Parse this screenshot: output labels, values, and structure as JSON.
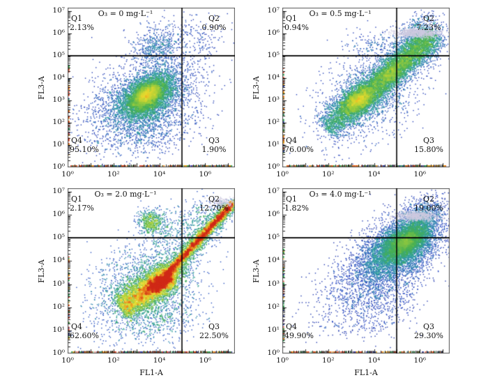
{
  "figure": {
    "x_axis_label": "FL1-A",
    "y_axis_label": "FL3-A",
    "description": "Flow cytometry density scatter plots (FL1-A vs FL3-A) with quadrant gates at four ozone doses"
  },
  "axes": {
    "x_tick_labels": [
      "10⁰",
      "10²",
      "10⁴",
      "10⁶"
    ],
    "x_tick_decades": [
      0,
      2,
      4,
      6
    ],
    "y_tick_labels": [
      "10⁰",
      "10¹",
      "10²",
      "10³",
      "10⁴",
      "10⁵",
      "10⁶",
      "10⁷"
    ],
    "y_tick_decades": [
      0,
      1,
      2,
      3,
      4,
      5,
      6,
      7
    ],
    "x_log_range": [
      0,
      7.3
    ],
    "y_log_range": [
      0,
      7.15
    ]
  },
  "style": {
    "frame_color": "#555555",
    "tick_color": "#222222",
    "gate_color": "#000000",
    "smudge_color": "#cdc9e0",
    "rug_palette": [
      "#2a3aa0",
      "#2f9e4e",
      "#e5950f",
      "#d23c1e"
    ],
    "jet_stops": [
      [
        0.0,
        28,
        37,
        140
      ],
      [
        0.18,
        38,
        70,
        195
      ],
      [
        0.38,
        45,
        155,
        165
      ],
      [
        0.55,
        70,
        175,
        85
      ],
      [
        0.7,
        160,
        205,
        60
      ],
      [
        0.82,
        232,
        218,
        48
      ],
      [
        0.91,
        235,
        135,
        30
      ],
      [
        1.0,
        208,
        42,
        24
      ]
    ]
  },
  "chart_data": [
    {
      "type": "scatter",
      "title": "O₃ = 0 mg·L⁻¹",
      "o3_label": "0 mg·L⁻¹",
      "gate_x_log": 5,
      "gate_y_log": 5,
      "quadrants": [
        {
          "name": "Q1",
          "percent": "2.13%"
        },
        {
          "name": "Q2",
          "percent": "0.90%"
        },
        {
          "name": "Q3",
          "percent": "1.90%"
        },
        {
          "name": "Q4",
          "percent": "95.10%"
        }
      ],
      "gain": 0.72,
      "seed": 101,
      "clusters": [
        {
          "n": 2200,
          "cx": 3.2,
          "cy": 2.9,
          "sx": 1.2,
          "sy": 0.95,
          "rho": 0.35
        },
        {
          "n": 4600,
          "cx": 3.5,
          "cy": 3.2,
          "sx": 0.62,
          "sy": 0.52,
          "rho": 0.5
        },
        {
          "n": 2400,
          "cx": 3.45,
          "cy": 3.25,
          "sx": 0.3,
          "sy": 0.26,
          "rho": 0.5
        },
        {
          "n": 520,
          "cx": 3.9,
          "cy": 5.3,
          "sx": 0.55,
          "sy": 0.45,
          "rho": 0.15
        },
        {
          "n": 120,
          "cx": 4.6,
          "cy": 5.9,
          "sx": 0.8,
          "sy": 0.55,
          "rho": 0.1
        },
        {
          "n": 140,
          "cx": 5.8,
          "cy": 5.6,
          "sx": 0.55,
          "sy": 0.6,
          "rho": 0.1
        },
        {
          "n": 90,
          "cx": 5.4,
          "cy": 2.5,
          "sx": 0.5,
          "sy": 0.9,
          "rho": 0.0
        },
        {
          "n": 450,
          "cx": 3.6,
          "cy": 1.6,
          "sx": 0.8,
          "sy": 0.55,
          "rho": 0.2
        }
      ],
      "bands": [],
      "smudges": [],
      "rug": {
        "bottom_n": 220,
        "left_n": 45
      }
    },
    {
      "type": "scatter",
      "title": "O₃ = 0.5 mg·L⁻¹",
      "o3_label": "0.5 mg·L⁻¹",
      "gate_x_log": 5,
      "gate_y_log": 5,
      "quadrants": [
        {
          "name": "Q1",
          "percent": "0.94%"
        },
        {
          "name": "Q2",
          "percent": "7.23%"
        },
        {
          "name": "Q3",
          "percent": "15.80%"
        },
        {
          "name": "Q4",
          "percent": "76.00%"
        }
      ],
      "gain": 0.78,
      "seed": 202,
      "clusters": [
        {
          "n": 2300,
          "cx": 3.35,
          "cy": 3.0,
          "sx": 0.52,
          "sy": 0.42,
          "rho": 0.55
        },
        {
          "n": 1000,
          "cx": 3.3,
          "cy": 3.0,
          "sx": 0.27,
          "sy": 0.22,
          "rho": 0.5
        },
        {
          "n": 1700,
          "cx": 4.7,
          "cy": 4.15,
          "sx": 0.5,
          "sy": 0.42,
          "rho": 0.65
        },
        {
          "n": 1600,
          "cx": 5.8,
          "cy": 5.15,
          "sx": 0.6,
          "sy": 0.5,
          "rho": 0.6
        },
        {
          "n": 300,
          "cx": 6.1,
          "cy": 6.2,
          "sx": 0.55,
          "sy": 0.4,
          "rho": 0.3
        },
        {
          "n": 1400,
          "cx": 3.7,
          "cy": 3.1,
          "sx": 1.15,
          "sy": 1.0,
          "rho": 0.4
        },
        {
          "n": 160,
          "cx": 4.0,
          "cy": 5.5,
          "sx": 0.6,
          "sy": 0.4,
          "rho": 0.1
        }
      ],
      "bands": [
        {
          "n": 4200,
          "x0": 1.9,
          "y0": 1.7,
          "x1": 6.6,
          "y1": 6.0,
          "perp": 0.34
        }
      ],
      "smudges": [
        {
          "n": 650,
          "cx": 5.9,
          "cy": 6.02,
          "sx": 0.5,
          "sy": 0.1
        }
      ],
      "rug": {
        "bottom_n": 200,
        "left_n": 55
      }
    },
    {
      "type": "scatter",
      "title": "O₃ = 2.0 mg·L⁻¹",
      "o3_label": "2.0 mg·L⁻¹",
      "gate_x_log": 5,
      "gate_y_log": 5,
      "quadrants": [
        {
          "name": "Q1",
          "percent": "2.17%"
        },
        {
          "name": "Q2",
          "percent": "12.70%"
        },
        {
          "name": "Q3",
          "percent": "22.50%"
        },
        {
          "name": "Q4",
          "percent": "62.60%"
        }
      ],
      "gain": 1.1,
      "seed": 303,
      "clusters": [
        {
          "n": 2000,
          "cx": 4.0,
          "cy": 3.05,
          "sx": 0.5,
          "sy": 0.38,
          "rho": 0.6
        },
        {
          "n": 900,
          "cx": 4.1,
          "cy": 3.1,
          "sx": 0.26,
          "sy": 0.2,
          "rho": 0.6
        },
        {
          "n": 500,
          "cx": 3.65,
          "cy": 5.7,
          "sx": 0.3,
          "sy": 0.27,
          "rho": 0.1
        },
        {
          "n": 140,
          "cx": 4.3,
          "cy": 5.2,
          "sx": 0.45,
          "sy": 0.35,
          "rho": 0.1
        },
        {
          "n": 2000,
          "cx": 3.4,
          "cy": 2.9,
          "sx": 1.15,
          "sy": 1.0,
          "rho": 0.35
        },
        {
          "n": 250,
          "cx": 5.6,
          "cy": 5.8,
          "sx": 0.6,
          "sy": 0.5,
          "rho": 0.2
        },
        {
          "n": 400,
          "cx": 4.0,
          "cy": 1.5,
          "sx": 0.9,
          "sy": 0.5,
          "rho": 0.2
        }
      ],
      "bands": [
        {
          "n": 3600,
          "x0": 4.35,
          "y0": 3.45,
          "x1": 7.25,
          "y1": 6.55,
          "perp": 0.085
        },
        {
          "n": 1500,
          "x0": 4.3,
          "y0": 3.4,
          "x1": 7.1,
          "y1": 6.4,
          "perp": 0.22
        },
        {
          "n": 3200,
          "x0": 2.3,
          "y0": 1.95,
          "x1": 4.5,
          "y1": 3.35,
          "perp": 0.33
        }
      ],
      "smudges": [
        {
          "n": 160,
          "cx": 6.75,
          "cy": 6.55,
          "sx": 0.3,
          "sy": 0.1
        }
      ],
      "rug": {
        "bottom_n": 260,
        "left_n": 55
      }
    },
    {
      "type": "scatter",
      "title": "O₃ = 4.0 mg·L⁻¹",
      "o3_label": "4.0 mg·L⁻¹",
      "gate_x_log": 5,
      "gate_y_log": 5,
      "quadrants": [
        {
          "name": "Q1",
          "percent": "1.82%"
        },
        {
          "name": "Q2",
          "percent": "19.00%"
        },
        {
          "name": "Q3",
          "percent": "29.30%"
        },
        {
          "name": "Q4",
          "percent": "49.90%"
        }
      ],
      "gain": 0.62,
      "seed": 404,
      "clusters": [
        {
          "n": 2600,
          "cx": 4.6,
          "cy": 3.9,
          "sx": 1.15,
          "sy": 1.0,
          "rho": 0.45
        },
        {
          "n": 4800,
          "cx": 5.25,
          "cy": 4.7,
          "sx": 0.75,
          "sy": 0.6,
          "rho": 0.55
        },
        {
          "n": 2600,
          "cx": 5.4,
          "cy": 4.85,
          "sx": 0.42,
          "sy": 0.34,
          "rho": 0.55
        },
        {
          "n": 600,
          "cx": 5.9,
          "cy": 5.8,
          "sx": 0.5,
          "sy": 0.35,
          "rho": 0.3
        },
        {
          "n": 200,
          "cx": 6.4,
          "cy": 6.3,
          "sx": 0.45,
          "sy": 0.4,
          "rho": 0.2
        },
        {
          "n": 220,
          "cx": 2.8,
          "cy": 2.2,
          "sx": 0.9,
          "sy": 0.8,
          "rho": 0.3
        },
        {
          "n": 260,
          "cx": 4.3,
          "cy": 1.8,
          "sx": 0.8,
          "sy": 0.6,
          "rho": 0.2
        }
      ],
      "bands": [],
      "smudges": [
        {
          "n": 600,
          "cx": 5.9,
          "cy": 5.95,
          "sx": 0.48,
          "sy": 0.1
        }
      ],
      "rug": {
        "bottom_n": 150,
        "left_n": 60
      }
    }
  ]
}
